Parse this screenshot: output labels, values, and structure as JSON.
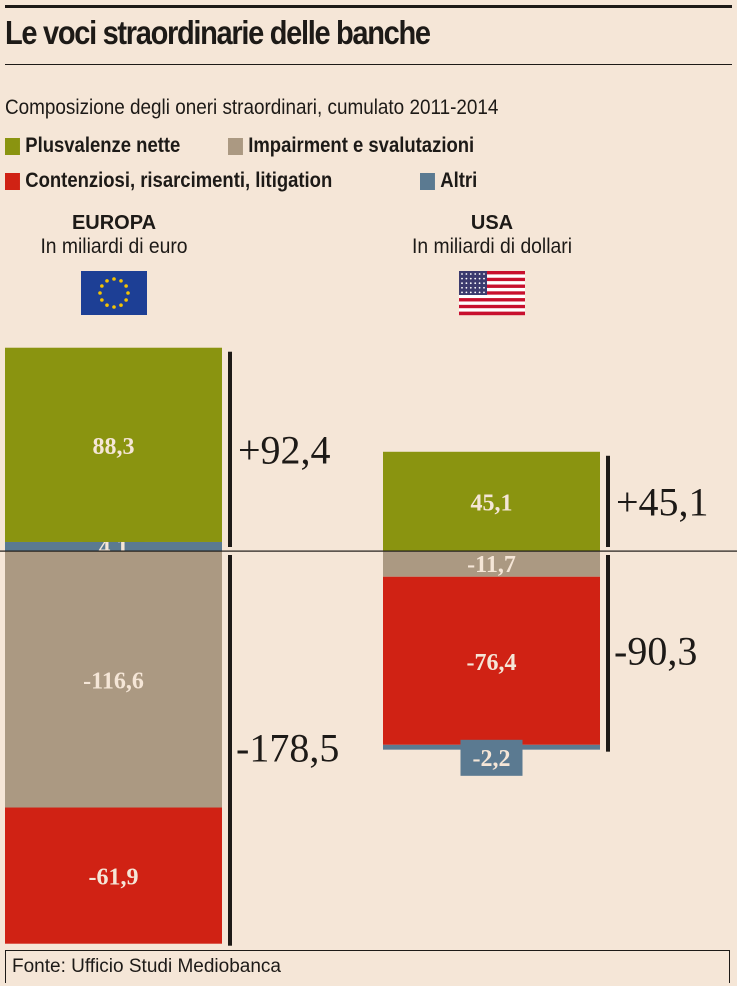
{
  "title": "Le voci straordinarie delle banche",
  "subtitle": "Composizione degli oneri straordinari, cumulato 2011-2014",
  "legend": [
    {
      "label": "Plusvalenze nette",
      "color": "#8a9410"
    },
    {
      "label": "Impairment e svalutazioni",
      "color": "#ab9982"
    },
    {
      "label": "Contenziosi, risarcimenti, litigation",
      "color": "#d02214"
    },
    {
      "label": "Altri",
      "color": "#5b7a91"
    }
  ],
  "columns": [
    {
      "name": "EUROPA",
      "unit": "In miliardi di euro",
      "flag": "eu-flag"
    },
    {
      "name": "USA",
      "unit": "In miliardi di dollari",
      "flag": "us-flag"
    }
  ],
  "footer": "Fonte: Ufficio Studi Mediobanca",
  "chart_data": {
    "type": "bar",
    "stacked": true,
    "categories": [
      "EUROPA",
      "USA"
    ],
    "series": [
      {
        "name": "Plusvalenze nette",
        "values": [
          88.3,
          45.1
        ],
        "labels": [
          "88,3",
          "45,1"
        ]
      },
      {
        "name": "Impairment e svalutazioni",
        "values": [
          -116.6,
          -11.7
        ],
        "labels": [
          "-116,6",
          "-11,7"
        ]
      },
      {
        "name": "Contenziosi, risarcimenti, litigation",
        "values": [
          -61.9,
          -76.4
        ],
        "labels": [
          "-61,9",
          "-76,4"
        ]
      },
      {
        "name": "Altri",
        "values": [
          4.1,
          -2.2
        ],
        "labels": [
          "4,1",
          "-2,2"
        ]
      }
    ],
    "totals": [
      {
        "positive": "+92,4",
        "negative": "-178,5",
        "positive_value": 92.4,
        "negative_value": -178.5
      },
      {
        "positive": "+45,1",
        "negative": "-90,3",
        "positive_value": 45.1,
        "negative_value": -90.3
      }
    ]
  }
}
